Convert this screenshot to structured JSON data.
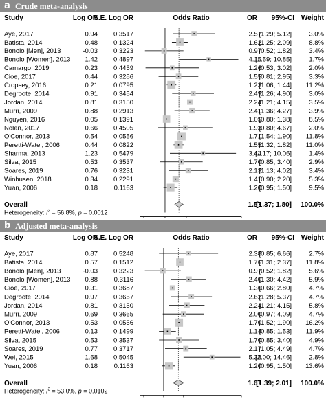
{
  "header_columns": {
    "study": "Study",
    "log_or": "Log OR",
    "se_log_or": "S.E. Log OR",
    "odds_ratio": "Odds Ratio",
    "or": "OR",
    "ci": "95%-CI",
    "weight": "Weight"
  },
  "chart_data": [
    {
      "type": "forest",
      "panel_label": "a",
      "title": "Crude meta-analysis",
      "x_scale": "log",
      "x_ticks": [
        "0.5",
        "1",
        "2",
        "12"
      ],
      "x_tick_values": [
        0.5,
        1,
        2,
        12
      ],
      "xlim": [
        0.5,
        12
      ],
      "summary_line": 1.57,
      "studies": [
        {
          "study": "Aye, 2017",
          "log_or": "0.94",
          "se": "0.3517",
          "or": 2.57,
          "lo": 1.29,
          "hi": 5.12,
          "or_text": "2.57",
          "ci_text": "[1.29; 5.12]",
          "weight_text": "3.0%",
          "weight": 3.0
        },
        {
          "study": "Batista, 2014",
          "log_or": "0.48",
          "se": "0.1324",
          "or": 1.62,
          "lo": 1.25,
          "hi": 2.09,
          "or_text": "1.62",
          "ci_text": "[1.25; 2.09]",
          "weight_text": "8.8%",
          "weight": 8.8
        },
        {
          "study": "Bonolo [Men], 2013",
          "log_or": "-0.03",
          "se": "0.3223",
          "or": 0.97,
          "lo": 0.52,
          "hi": 1.82,
          "or_text": "0.97",
          "ci_text": "[0.52; 1.82]",
          "weight_text": "3.4%",
          "weight": 3.4
        },
        {
          "study": "Bonolo [Women], 2013",
          "log_or": "1.42",
          "se": "0.4897",
          "or": 4.15,
          "lo": 1.59,
          "hi": 10.85,
          "or_text": "4.15",
          "ci_text": "[1.59; 10.85]",
          "weight_text": "1.7%",
          "weight": 1.7
        },
        {
          "study": "Camargo, 2019",
          "log_or": "0.23",
          "se": "0.4459",
          "or": 1.26,
          "lo": 0.53,
          "hi": 3.02,
          "or_text": "1.26",
          "ci_text": "[0.53; 3.02]",
          "weight_text": "2.0%",
          "weight": 2.0
        },
        {
          "study": "Cioe, 2017",
          "log_or": "0.44",
          "se": "0.3286",
          "or": 1.55,
          "lo": 0.81,
          "hi": 2.95,
          "or_text": "1.55",
          "ci_text": "[0.81; 2.95]",
          "weight_text": "3.3%",
          "weight": 3.3
        },
        {
          "study": "Cropsey, 2016",
          "log_or": "0.21",
          "se": "0.0795",
          "or": 1.23,
          "lo": 1.06,
          "hi": 1.44,
          "or_text": "1.23",
          "ci_text": "[1.06; 1.44]",
          "weight_text": "11.2%",
          "weight": 11.2
        },
        {
          "study": "Degroote, 2014",
          "log_or": "0.91",
          "se": "0.3454",
          "or": 2.49,
          "lo": 1.26,
          "hi": 4.9,
          "or_text": "2.49",
          "ci_text": "[1.26; 4.90]",
          "weight_text": "3.0%",
          "weight": 3.0
        },
        {
          "study": "Jordan, 2014",
          "log_or": "0.81",
          "se": "0.3150",
          "or": 2.24,
          "lo": 1.21,
          "hi": 4.15,
          "or_text": "2.24",
          "ci_text": "[1.21; 4.15]",
          "weight_text": "3.5%",
          "weight": 3.5
        },
        {
          "study": "Murri, 2009",
          "log_or": "0.88",
          "se": "0.2913",
          "or": 2.41,
          "lo": 1.36,
          "hi": 4.27,
          "or_text": "2.41",
          "ci_text": "[1.36; 4.27]",
          "weight_text": "3.9%",
          "weight": 3.9
        },
        {
          "study": "Nguyen, 2016",
          "log_or": "0.05",
          "se": "0.1391",
          "or": 1.05,
          "lo": 0.8,
          "hi": 1.38,
          "or_text": "1.05",
          "ci_text": "[0.80; 1.38]",
          "weight_text": "8.5%",
          "weight": 8.5
        },
        {
          "study": "Nolan, 2017",
          "log_or": "0.66",
          "se": "0.4505",
          "or": 1.93,
          "lo": 0.8,
          "hi": 4.67,
          "or_text": "1.93",
          "ci_text": "[0.80; 4.67]",
          "weight_text": "2.0%",
          "weight": 2.0
        },
        {
          "study": "O'Connor, 2013",
          "log_or": "0.54",
          "se": "0.0556",
          "or": 1.71,
          "lo": 1.54,
          "hi": 1.9,
          "or_text": "1.71",
          "ci_text": "[1.54; 1.90]",
          "weight_text": "11.8%",
          "weight": 11.8
        },
        {
          "study": "Peretti-Watel, 2006",
          "log_or": "0.44",
          "se": "0.0822",
          "or": 1.55,
          "lo": 1.32,
          "hi": 1.82,
          "or_text": "1.55",
          "ci_text": "[1.32; 1.82]",
          "weight_text": "11.0%",
          "weight": 11.0
        },
        {
          "study": "Sharma, 2013",
          "log_or": "1.23",
          "se": "0.5479",
          "or": 3.44,
          "lo": 1.17,
          "hi": 10.06,
          "or_text": "3.44",
          "ci_text": "[1.17; 10.06]",
          "weight_text": "1.4%",
          "weight": 1.4
        },
        {
          "study": "Silva, 2015",
          "log_or": "0.53",
          "se": "0.3537",
          "or": 1.7,
          "lo": 0.85,
          "hi": 3.4,
          "or_text": "1.70",
          "ci_text": "[0.85; 3.40]",
          "weight_text": "2.9%",
          "weight": 2.9
        },
        {
          "study": "Soares, 2019",
          "log_or": "0.76",
          "se": "0.3231",
          "or": 2.13,
          "lo": 1.13,
          "hi": 4.02,
          "or_text": "2.13",
          "ci_text": "[1.13; 4.02]",
          "weight_text": "3.4%",
          "weight": 3.4
        },
        {
          "study": "Winhusen, 2018",
          "log_or": "0.34",
          "se": "0.2291",
          "or": 1.41,
          "lo": 0.9,
          "hi": 2.2,
          "or_text": "1.41",
          "ci_text": "[0.90; 2.20]",
          "weight_text": "5.3%",
          "weight": 5.3
        },
        {
          "study": "Yuan, 2006",
          "log_or": "0.18",
          "se": "0.1163",
          "or": 1.2,
          "lo": 0.95,
          "hi": 1.5,
          "or_text": "1.20",
          "ci_text": "[0.95; 1.50]",
          "weight_text": "9.5%",
          "weight": 9.5
        }
      ],
      "overall": {
        "label": "Overall",
        "or": 1.57,
        "lo": 1.37,
        "hi": 1.8,
        "or_text": "1.57",
        "ci_text": "[1.37; 1.80]",
        "weight_text": "100.0%"
      },
      "heterogeneity": {
        "prefix": "Heterogeneity: ",
        "i2_symbol": "I",
        "i2_exp": "2",
        "rest": " = 56.8%, ",
        "p_symbol": "p",
        "p_rest": " = 0.0012"
      }
    },
    {
      "type": "forest",
      "panel_label": "b",
      "title": "Adjusted meta-analysis",
      "x_scale": "log",
      "x_ticks": [
        "0.5",
        "1",
        "2",
        "15"
      ],
      "x_tick_values": [
        0.5,
        1,
        2,
        15
      ],
      "xlim": [
        0.5,
        15
      ],
      "summary_line": 1.67,
      "studies": [
        {
          "study": "Aye, 2017",
          "log_or": "0.87",
          "se": "0.5248",
          "or": 2.38,
          "lo": 0.85,
          "hi": 6.66,
          "or_text": "2.38",
          "ci_text": "[0.85; 6.66]",
          "weight_text": "2.7%",
          "weight": 2.7
        },
        {
          "study": "Batista, 2014",
          "log_or": "0.57",
          "se": "0.1512",
          "or": 1.76,
          "lo": 1.31,
          "hi": 2.37,
          "or_text": "1.76",
          "ci_text": "[1.31; 2.37]",
          "weight_text": "11.8%",
          "weight": 11.8
        },
        {
          "study": "Bonolo [Men], 2013",
          "log_or": "-0.03",
          "se": "0.3223",
          "or": 0.97,
          "lo": 0.52,
          "hi": 1.82,
          "or_text": "0.97",
          "ci_text": "[0.52; 1.82]",
          "weight_text": "5.6%",
          "weight": 5.6
        },
        {
          "study": "Bonolo [Women], 2013",
          "log_or": "0.88",
          "se": "0.3116",
          "or": 2.4,
          "lo": 1.3,
          "hi": 4.42,
          "or_text": "2.40",
          "ci_text": "[1.30; 4.42]",
          "weight_text": "5.9%",
          "weight": 5.9
        },
        {
          "study": "Cioe, 2017",
          "log_or": "0.31",
          "se": "0.3687",
          "or": 1.36,
          "lo": 0.66,
          "hi": 2.8,
          "or_text": "1.36",
          "ci_text": "[0.66; 2.80]",
          "weight_text": "4.7%",
          "weight": 4.7
        },
        {
          "study": "Degroote, 2014",
          "log_or": "0.97",
          "se": "0.3657",
          "or": 2.62,
          "lo": 1.28,
          "hi": 5.37,
          "or_text": "2.62",
          "ci_text": "[1.28; 5.37]",
          "weight_text": "4.7%",
          "weight": 4.7
        },
        {
          "study": "Jordan, 2014",
          "log_or": "0.81",
          "se": "0.3150",
          "or": 2.24,
          "lo": 1.21,
          "hi": 4.15,
          "or_text": "2.24",
          "ci_text": "[1.21; 4.15]",
          "weight_text": "5.8%",
          "weight": 5.8
        },
        {
          "study": "Murri, 2009",
          "log_or": "0.69",
          "se": "0.3665",
          "or": 2.0,
          "lo": 0.97,
          "hi": 4.09,
          "or_text": "2.00",
          "ci_text": "[0.97; 4.09]",
          "weight_text": "4.7%",
          "weight": 4.7
        },
        {
          "study": "O'Connor, 2013",
          "log_or": "0.53",
          "se": "0.0556",
          "or": 1.7,
          "lo": 1.52,
          "hi": 1.9,
          "or_text": "1.70",
          "ci_text": "[1.52; 1.90]",
          "weight_text": "16.2%",
          "weight": 16.2
        },
        {
          "study": "Peretti-Watel, 2006",
          "log_or": "0.13",
          "se": "0.1499",
          "or": 1.14,
          "lo": 0.85,
          "hi": 1.53,
          "or_text": "1.14",
          "ci_text": "[0.85; 1.53]",
          "weight_text": "11.9%",
          "weight": 11.9
        },
        {
          "study": "Silva, 2015",
          "log_or": "0.53",
          "se": "0.3537",
          "or": 1.7,
          "lo": 0.85,
          "hi": 3.4,
          "or_text": "1.70",
          "ci_text": "[0.85; 3.40]",
          "weight_text": "4.9%",
          "weight": 4.9
        },
        {
          "study": "Soares, 2019",
          "log_or": "0.77",
          "se": "0.3717",
          "or": 2.17,
          "lo": 1.05,
          "hi": 4.49,
          "or_text": "2.17",
          "ci_text": "[1.05; 4.49]",
          "weight_text": "4.7%",
          "weight": 4.7
        },
        {
          "study": "Wei, 2015",
          "log_or": "1.68",
          "se": "0.5045",
          "or": 5.38,
          "lo": 2.0,
          "hi": 14.46,
          "or_text": "5.38",
          "ci_text": "[2.00; 14.46]",
          "weight_text": "2.8%",
          "weight": 2.8
        },
        {
          "study": "Yuan, 2006",
          "log_or": "0.18",
          "se": "0.1163",
          "or": 1.2,
          "lo": 0.95,
          "hi": 1.5,
          "or_text": "1.20",
          "ci_text": "[0.95; 1.50]",
          "weight_text": "13.6%",
          "weight": 13.6
        }
      ],
      "overall": {
        "label": "Overall",
        "or": 1.67,
        "lo": 1.39,
        "hi": 2.01,
        "or_text": "1.67",
        "ci_text": "[1.39; 2.01]",
        "weight_text": "100.0%"
      },
      "heterogeneity": {
        "prefix": "Heterogeneity: ",
        "i2_symbol": "I",
        "i2_exp": "2",
        "rest": " = 53.0%, ",
        "p_symbol": "p",
        "p_rest": " = 0.0102"
      }
    }
  ]
}
